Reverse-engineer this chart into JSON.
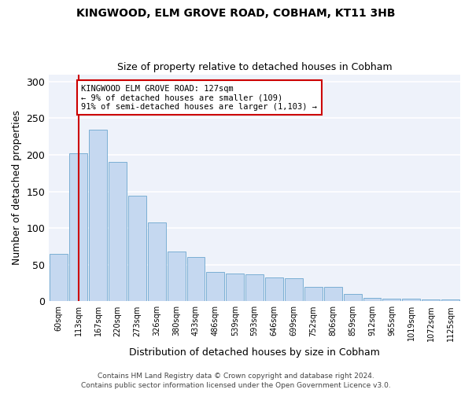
{
  "title1": "KINGWOOD, ELM GROVE ROAD, COBHAM, KT11 3HB",
  "title2": "Size of property relative to detached houses in Cobham",
  "xlabel": "Distribution of detached houses by size in Cobham",
  "ylabel": "Number of detached properties",
  "bar_labels": [
    "60sqm",
    "113sqm",
    "167sqm",
    "220sqm",
    "273sqm",
    "326sqm",
    "380sqm",
    "433sqm",
    "486sqm",
    "539sqm",
    "593sqm",
    "646sqm",
    "699sqm",
    "752sqm",
    "806sqm",
    "859sqm",
    "912sqm",
    "965sqm",
    "1019sqm",
    "1072sqm",
    "1125sqm"
  ],
  "bar_values": [
    65,
    202,
    234,
    190,
    144,
    108,
    68,
    60,
    40,
    38,
    37,
    32,
    31,
    20,
    20,
    10,
    5,
    4,
    4,
    2,
    2
  ],
  "bar_color": "#c5d8f0",
  "bar_edgecolor": "#7bafd4",
  "background_color": "#eef2fa",
  "fig_background": "#ffffff",
  "grid_color": "#ffffff",
  "vline_color": "#cc0000",
  "annotation_text": "KINGWOOD ELM GROVE ROAD: 127sqm\n← 9% of detached houses are smaller (109)\n91% of semi-detached houses are larger (1,103) →",
  "annotation_box_color": "#ffffff",
  "annotation_box_edgecolor": "#cc0000",
  "ylim": [
    0,
    310
  ],
  "yticks": [
    0,
    50,
    100,
    150,
    200,
    250,
    300
  ],
  "footer1": "Contains HM Land Registry data © Crown copyright and database right 2024.",
  "footer2": "Contains public sector information licensed under the Open Government Licence v3.0."
}
